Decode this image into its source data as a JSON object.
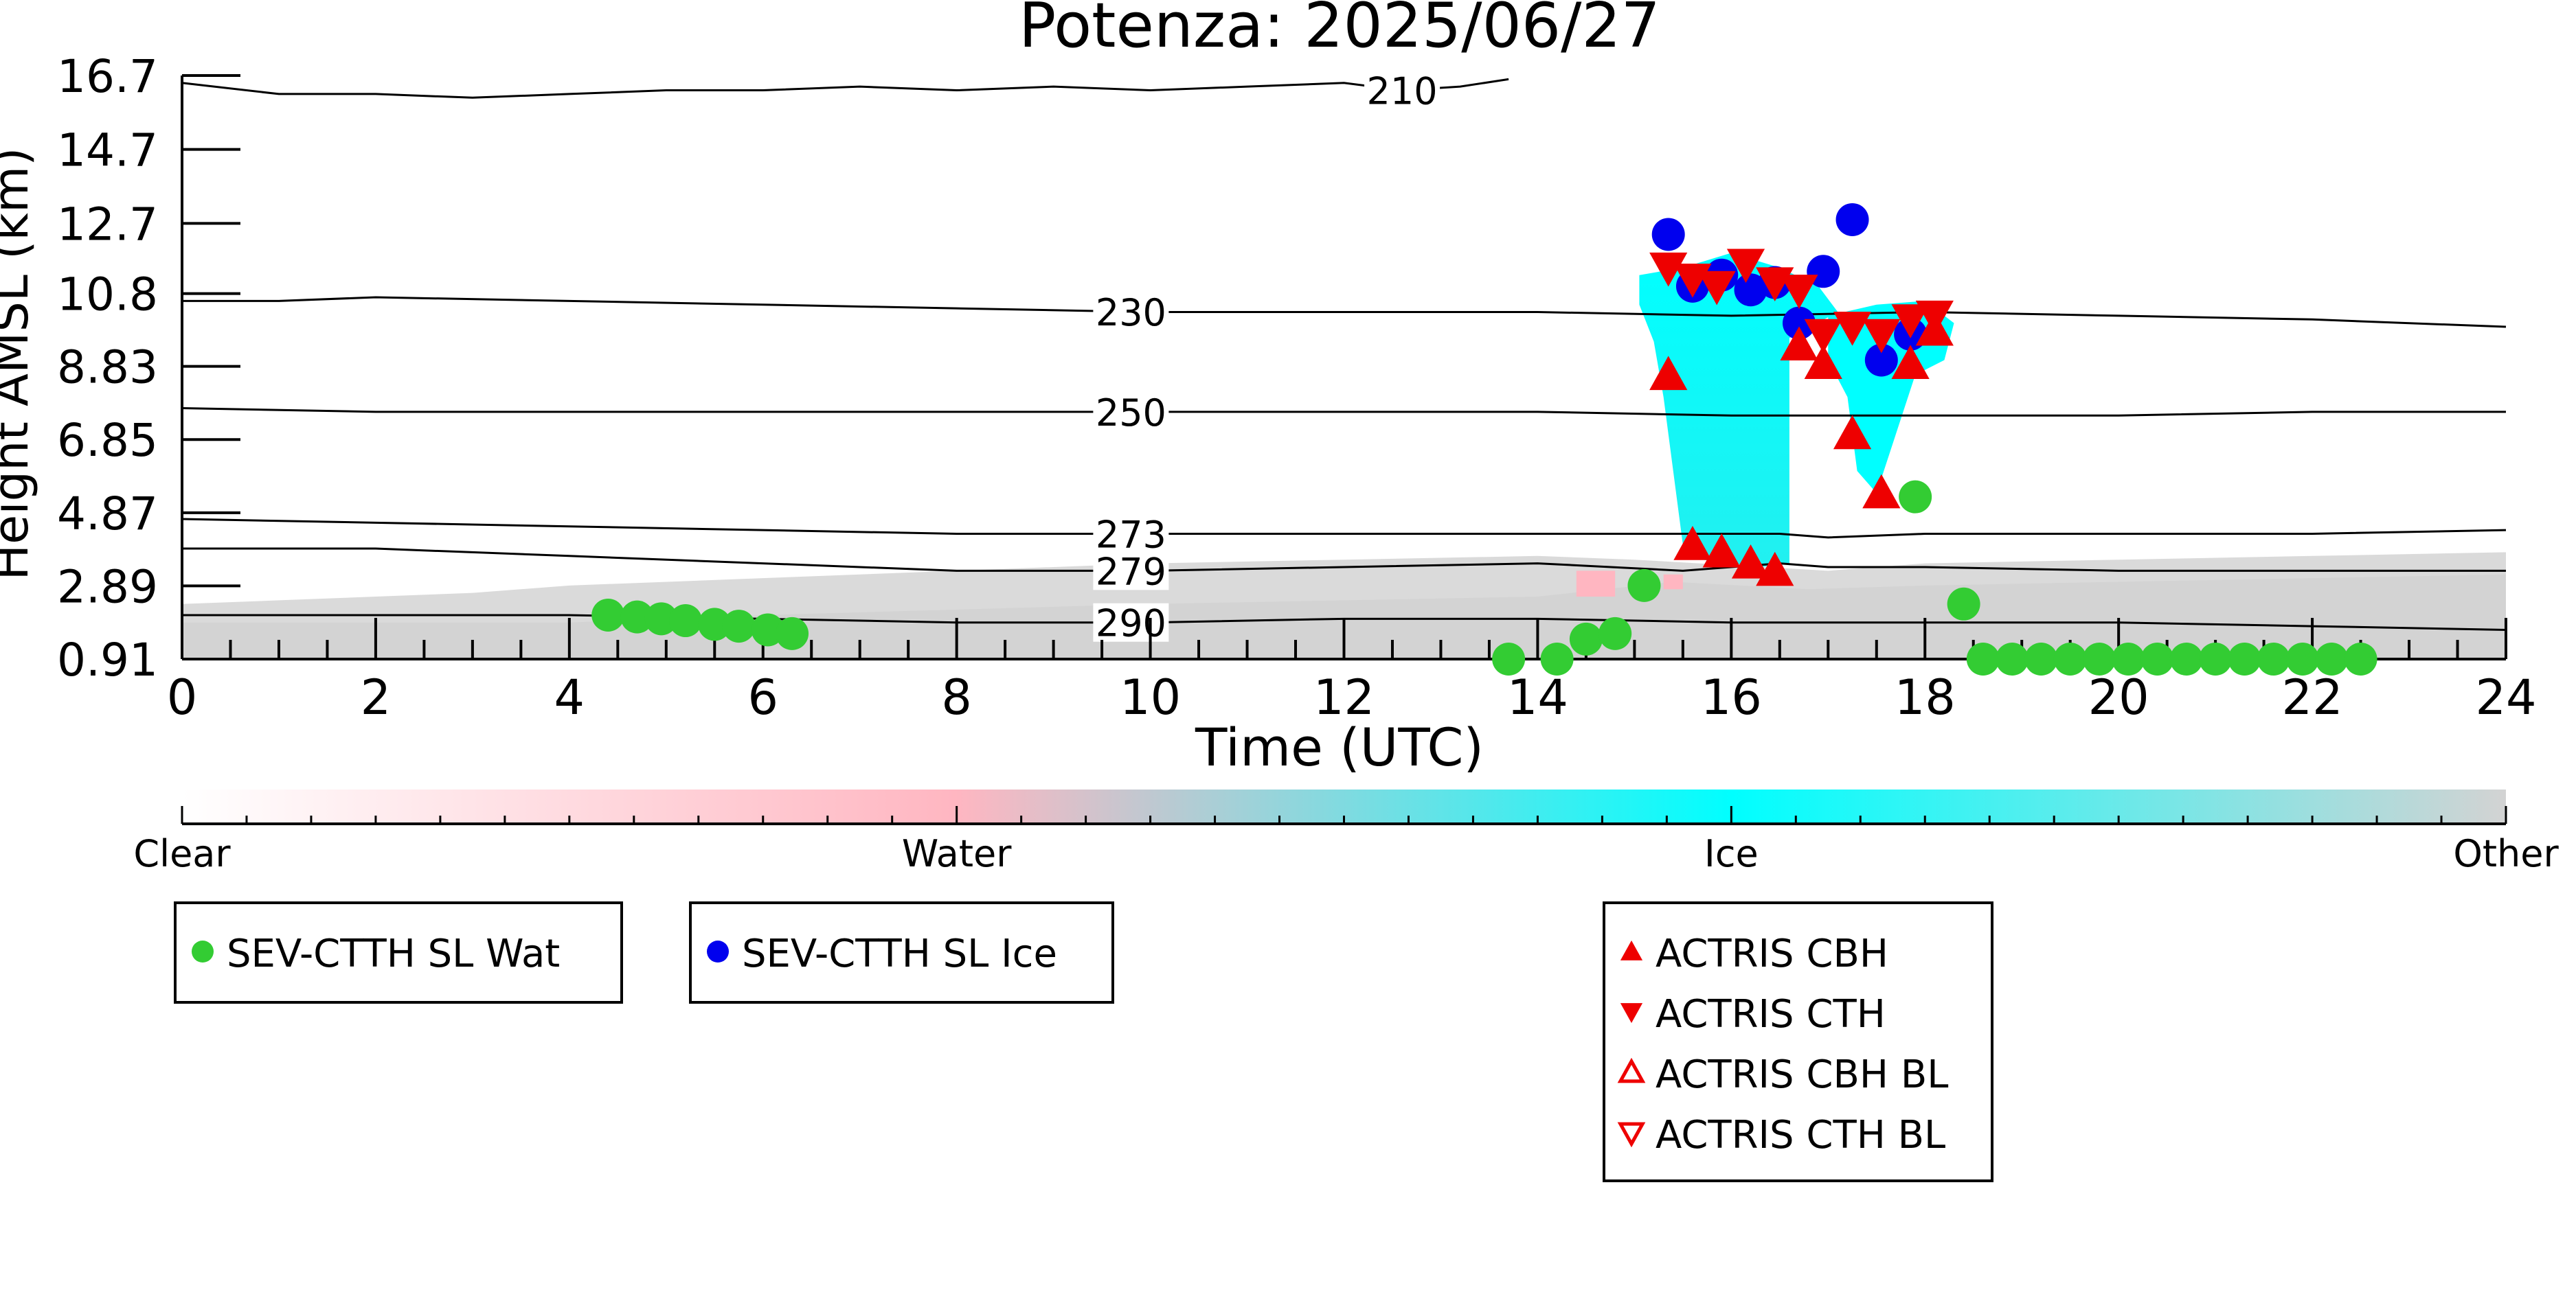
{
  "chart_data": {
    "type": "scatter",
    "title": "Potenza: 2025/06/27",
    "xlabel": "Time (UTC)",
    "ylabel": "Height AMSL (km)",
    "xlim": [
      0,
      24
    ],
    "ylim": [
      0.91,
      16.7
    ],
    "x_ticks": [
      "0",
      "2",
      "4",
      "6",
      "8",
      "10",
      "12",
      "14",
      "16",
      "18",
      "20",
      "22",
      "24"
    ],
    "y_ticks": [
      "0.91",
      "2.89",
      "4.87",
      "6.85",
      "8.83",
      "10.8",
      "12.7",
      "14.7",
      "16.7"
    ],
    "contours": [
      {
        "label": "210",
        "label_x": 12.6,
        "points": [
          [
            0,
            16.5
          ],
          [
            1,
            16.2
          ],
          [
            2,
            16.2
          ],
          [
            3,
            16.1
          ],
          [
            4,
            16.2
          ],
          [
            5,
            16.3
          ],
          [
            6,
            16.3
          ],
          [
            7,
            16.4
          ],
          [
            8,
            16.3
          ],
          [
            9,
            16.4
          ],
          [
            10,
            16.3
          ],
          [
            11,
            16.4
          ],
          [
            12,
            16.5
          ],
          [
            12.6,
            16.3
          ],
          [
            13.2,
            16.4
          ],
          [
            13.7,
            16.6
          ]
        ]
      },
      {
        "label": "230",
        "label_x": 9.8,
        "points": [
          [
            0,
            10.6
          ],
          [
            1,
            10.6
          ],
          [
            2,
            10.7
          ],
          [
            4,
            10.6
          ],
          [
            6,
            10.5
          ],
          [
            8,
            10.4
          ],
          [
            10,
            10.3
          ],
          [
            12,
            10.3
          ],
          [
            14,
            10.3
          ],
          [
            16,
            10.2
          ],
          [
            18,
            10.3
          ],
          [
            20,
            10.2
          ],
          [
            22,
            10.1
          ],
          [
            24,
            9.9
          ]
        ]
      },
      {
        "label": "250",
        "label_x": 9.8,
        "points": [
          [
            0,
            7.7
          ],
          [
            2,
            7.6
          ],
          [
            4,
            7.6
          ],
          [
            6,
            7.6
          ],
          [
            8,
            7.6
          ],
          [
            10,
            7.6
          ],
          [
            12,
            7.6
          ],
          [
            14,
            7.6
          ],
          [
            16,
            7.5
          ],
          [
            18,
            7.5
          ],
          [
            20,
            7.5
          ],
          [
            22,
            7.6
          ],
          [
            24,
            7.6
          ]
        ]
      },
      {
        "label": "273",
        "label_x": 9.8,
        "points": [
          [
            0,
            4.7
          ],
          [
            2,
            4.6
          ],
          [
            4,
            4.5
          ],
          [
            6,
            4.4
          ],
          [
            8,
            4.3
          ],
          [
            10,
            4.3
          ],
          [
            12,
            4.3
          ],
          [
            14,
            4.3
          ],
          [
            15.5,
            4.3
          ],
          [
            16.5,
            4.3
          ],
          [
            17,
            4.2
          ],
          [
            18,
            4.3
          ],
          [
            20,
            4.3
          ],
          [
            22,
            4.3
          ],
          [
            24,
            4.4
          ]
        ]
      },
      {
        "label": "279",
        "label_x": 9.8,
        "points": [
          [
            0,
            3.9
          ],
          [
            2,
            3.9
          ],
          [
            4,
            3.7
          ],
          [
            6,
            3.5
          ],
          [
            8,
            3.3
          ],
          [
            10,
            3.3
          ],
          [
            12,
            3.4
          ],
          [
            14,
            3.5
          ],
          [
            15.5,
            3.3
          ],
          [
            16.5,
            3.5
          ],
          [
            17,
            3.4
          ],
          [
            18,
            3.4
          ],
          [
            20,
            3.3
          ],
          [
            22,
            3.3
          ],
          [
            24,
            3.3
          ]
        ]
      },
      {
        "label": "290",
        "label_x": 9.8,
        "points": [
          [
            0,
            2.1
          ],
          [
            2,
            2.1
          ],
          [
            4,
            2.1
          ],
          [
            6,
            2.0
          ],
          [
            8,
            1.9
          ],
          [
            10,
            1.9
          ],
          [
            12,
            2.0
          ],
          [
            14,
            2.0
          ],
          [
            16,
            1.9
          ],
          [
            18,
            1.9
          ],
          [
            20,
            1.9
          ],
          [
            22,
            1.8
          ],
          [
            24,
            1.7
          ]
        ]
      }
    ],
    "series": [
      {
        "name": "SEV-CTTH SL Wat",
        "color": "#33cc33",
        "marker": "circle",
        "x": [
          4.4,
          4.7,
          4.95,
          5.2,
          5.5,
          5.75,
          6.05,
          6.3,
          13.7,
          14.2,
          14.5,
          14.8,
          15.1,
          17.9,
          18.4,
          18.6,
          18.9,
          19.2,
          19.5,
          19.8,
          20.1,
          20.4,
          20.7,
          21.0,
          21.3,
          21.6,
          21.9,
          22.2,
          22.5
        ],
        "y": [
          2.1,
          2.05,
          2.0,
          1.95,
          1.85,
          1.8,
          1.7,
          1.6,
          0.9,
          0.9,
          1.45,
          1.6,
          2.9,
          5.3,
          2.4,
          0.9,
          0.9,
          0.9,
          0.9,
          0.9,
          0.9,
          0.9,
          0.9,
          0.9,
          0.9,
          0.9,
          0.9,
          0.9,
          0.9
        ]
      },
      {
        "name": "SEV-CTTH SL Ice",
        "color": "#0000ee",
        "marker": "circle",
        "x": [
          15.35,
          15.6,
          15.9,
          16.2,
          16.45,
          16.7,
          16.95,
          17.25,
          17.55,
          17.85
        ],
        "y": [
          12.4,
          11.0,
          11.3,
          10.9,
          11.1,
          10.0,
          11.4,
          12.8,
          9.0,
          9.7
        ]
      },
      {
        "name": "ACTRIS CBH",
        "color": "#ee0000",
        "marker": "triangle-up",
        "x": [
          15.35,
          15.6,
          15.9,
          16.2,
          16.45,
          16.7,
          16.95,
          17.25,
          17.55,
          17.85,
          18.1
        ],
        "y": [
          8.6,
          4.0,
          3.8,
          3.5,
          3.3,
          9.4,
          8.9,
          7.0,
          5.4,
          8.9,
          9.8
        ]
      },
      {
        "name": "ACTRIS CTH",
        "color": "#ee0000",
        "marker": "triangle-down",
        "x": [
          15.35,
          15.6,
          15.85,
          16.15,
          16.45,
          16.7,
          16.95,
          17.25,
          17.55,
          17.85,
          18.1
        ],
        "y": [
          11.5,
          11.2,
          11.0,
          11.6,
          11.1,
          10.9,
          9.7,
          9.9,
          9.7,
          10.1,
          10.2
        ]
      }
    ],
    "colorbar": {
      "labels": [
        "Clear",
        "Water",
        "Ice",
        "Other"
      ]
    },
    "legends": [
      {
        "position": "bottom-left",
        "entries": [
          "SEV-CTTH SL Wat"
        ]
      },
      {
        "position": "bottom-left",
        "entries": [
          "SEV-CTTH SL Ice"
        ]
      },
      {
        "position": "bottom-center",
        "entries": [
          "ACTRIS CBH",
          "ACTRIS CTH",
          "ACTRIS CBH BL",
          "ACTRIS CTH BL"
        ]
      }
    ],
    "legend_markers": {
      "SEV-CTTH SL Wat": {
        "color": "#33cc33",
        "shape": "circle"
      },
      "SEV-CTTH SL Ice": {
        "color": "#0000ee",
        "shape": "circle"
      },
      "ACTRIS CBH": {
        "color": "#ee0000",
        "shape": "triangle-up"
      },
      "ACTRIS CTH": {
        "color": "#ee0000",
        "shape": "triangle-down"
      },
      "ACTRIS CBH BL": {
        "color": "#ee0000",
        "shape": "triangle-up-open"
      },
      "ACTRIS CTH BL": {
        "color": "#ee0000",
        "shape": "triangle-down-open"
      }
    },
    "classification_colors": {
      "Clear": "#ffffff",
      "Water": "#ffb6c1",
      "Ice": "#00ffff",
      "Other": "#d3d3d3"
    }
  }
}
